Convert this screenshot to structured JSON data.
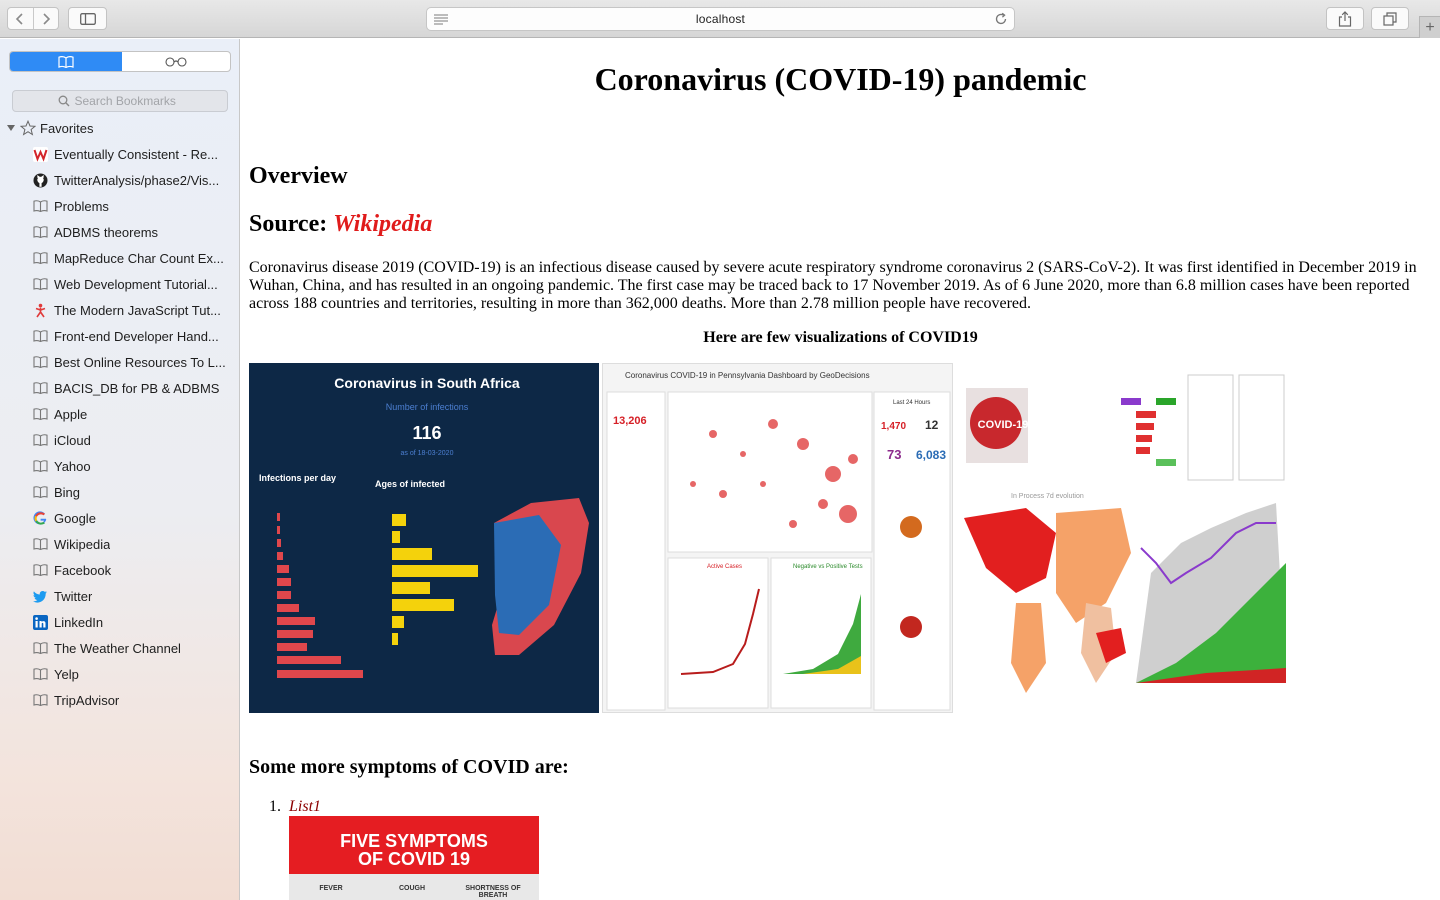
{
  "browser": {
    "url": "localhost"
  },
  "sidebar": {
    "search_placeholder": "Search Bookmarks",
    "favorites_label": "Favorites",
    "bookmarks": [
      {
        "label": "Eventually Consistent - Re...",
        "icon": "wordpress-red-icon"
      },
      {
        "label": "TwitterAnalysis/phase2/Vis...",
        "icon": "github-icon"
      },
      {
        "label": "Problems",
        "icon": "book-icon"
      },
      {
        "label": "ADBMS theorems",
        "icon": "book-icon"
      },
      {
        "label": "MapReduce Char Count Ex...",
        "icon": "book-icon"
      },
      {
        "label": "Web Development Tutorial...",
        "icon": "book-icon"
      },
      {
        "label": "The Modern JavaScript Tut...",
        "icon": "javascript-figure-icon"
      },
      {
        "label": "Front-end Developer Hand...",
        "icon": "book-icon"
      },
      {
        "label": "Best Online Resources To L...",
        "icon": "book-icon"
      },
      {
        "label": "BACIS_DB for PB & ADBMS",
        "icon": "book-icon"
      },
      {
        "label": "Apple",
        "icon": "book-icon"
      },
      {
        "label": "iCloud",
        "icon": "book-icon"
      },
      {
        "label": "Yahoo",
        "icon": "book-icon"
      },
      {
        "label": "Bing",
        "icon": "book-icon"
      },
      {
        "label": "Google",
        "icon": "google-icon"
      },
      {
        "label": "Wikipedia",
        "icon": "book-icon"
      },
      {
        "label": "Facebook",
        "icon": "book-icon"
      },
      {
        "label": "Twitter",
        "icon": "twitter-icon"
      },
      {
        "label": "LinkedIn",
        "icon": "linkedin-icon"
      },
      {
        "label": "The Weather Channel",
        "icon": "book-icon"
      },
      {
        "label": "Yelp",
        "icon": "book-icon"
      },
      {
        "label": "TripAdvisor",
        "icon": "book-icon"
      }
    ]
  },
  "page": {
    "title": "Coronavirus (COVID-19) pandemic",
    "overview_heading": "Overview",
    "source_prefix": "Source:",
    "source_link": "Wikipedia",
    "paragraph": "Coronavirus disease 2019 (COVID-19) is an infectious disease caused by severe acute respiratory syndrome coronavirus 2 (SARS-CoV-2). It was first identified in December 2019 in Wuhan, China, and has resulted in an ongoing pandemic. The first case may be traced back to 17 November 2019. As of 6 June 2020, more than 6.8 million cases have been reported across 188 countries and territories, resulting in more than 362,000 deaths. More than 2.78 million people have recovered.",
    "viz_heading": "Here are few visualizations of COVID19",
    "images": {
      "south_africa": {
        "title": "Coronavirus in South Africa",
        "subtitle": "Number of infections",
        "count": "116",
        "asof": "as of 18-03-2020",
        "infections_label": "Infections per day",
        "ages_label": "Ages of infected"
      },
      "pennsylvania": {
        "title": "Coronavirus COVID-19 in Pennsylvania Dashboard by GeoDecisions",
        "confirmed": "13,206",
        "new_cases": "1,470",
        "new_deaths": "12",
        "hospitalized": "73",
        "test_results": "6,083",
        "last24": "Last 24 Hours",
        "active_cases": "Active Cases",
        "neg_pos": "Negative vs Positive Tests"
      },
      "world": {
        "badge": "COVID-19",
        "evolution": "In Process 7d evolution"
      }
    },
    "symptoms_heading": "Some more symptoms of COVID are:",
    "list_number": "1.",
    "list_item": "List1",
    "five_symptoms": {
      "line1": "FIVE SYMPTOMS",
      "line2": "OF COVID 19",
      "s1": "FEVER",
      "s2": "COUGH",
      "s3": "SHORTNESS OF BREATH"
    }
  }
}
